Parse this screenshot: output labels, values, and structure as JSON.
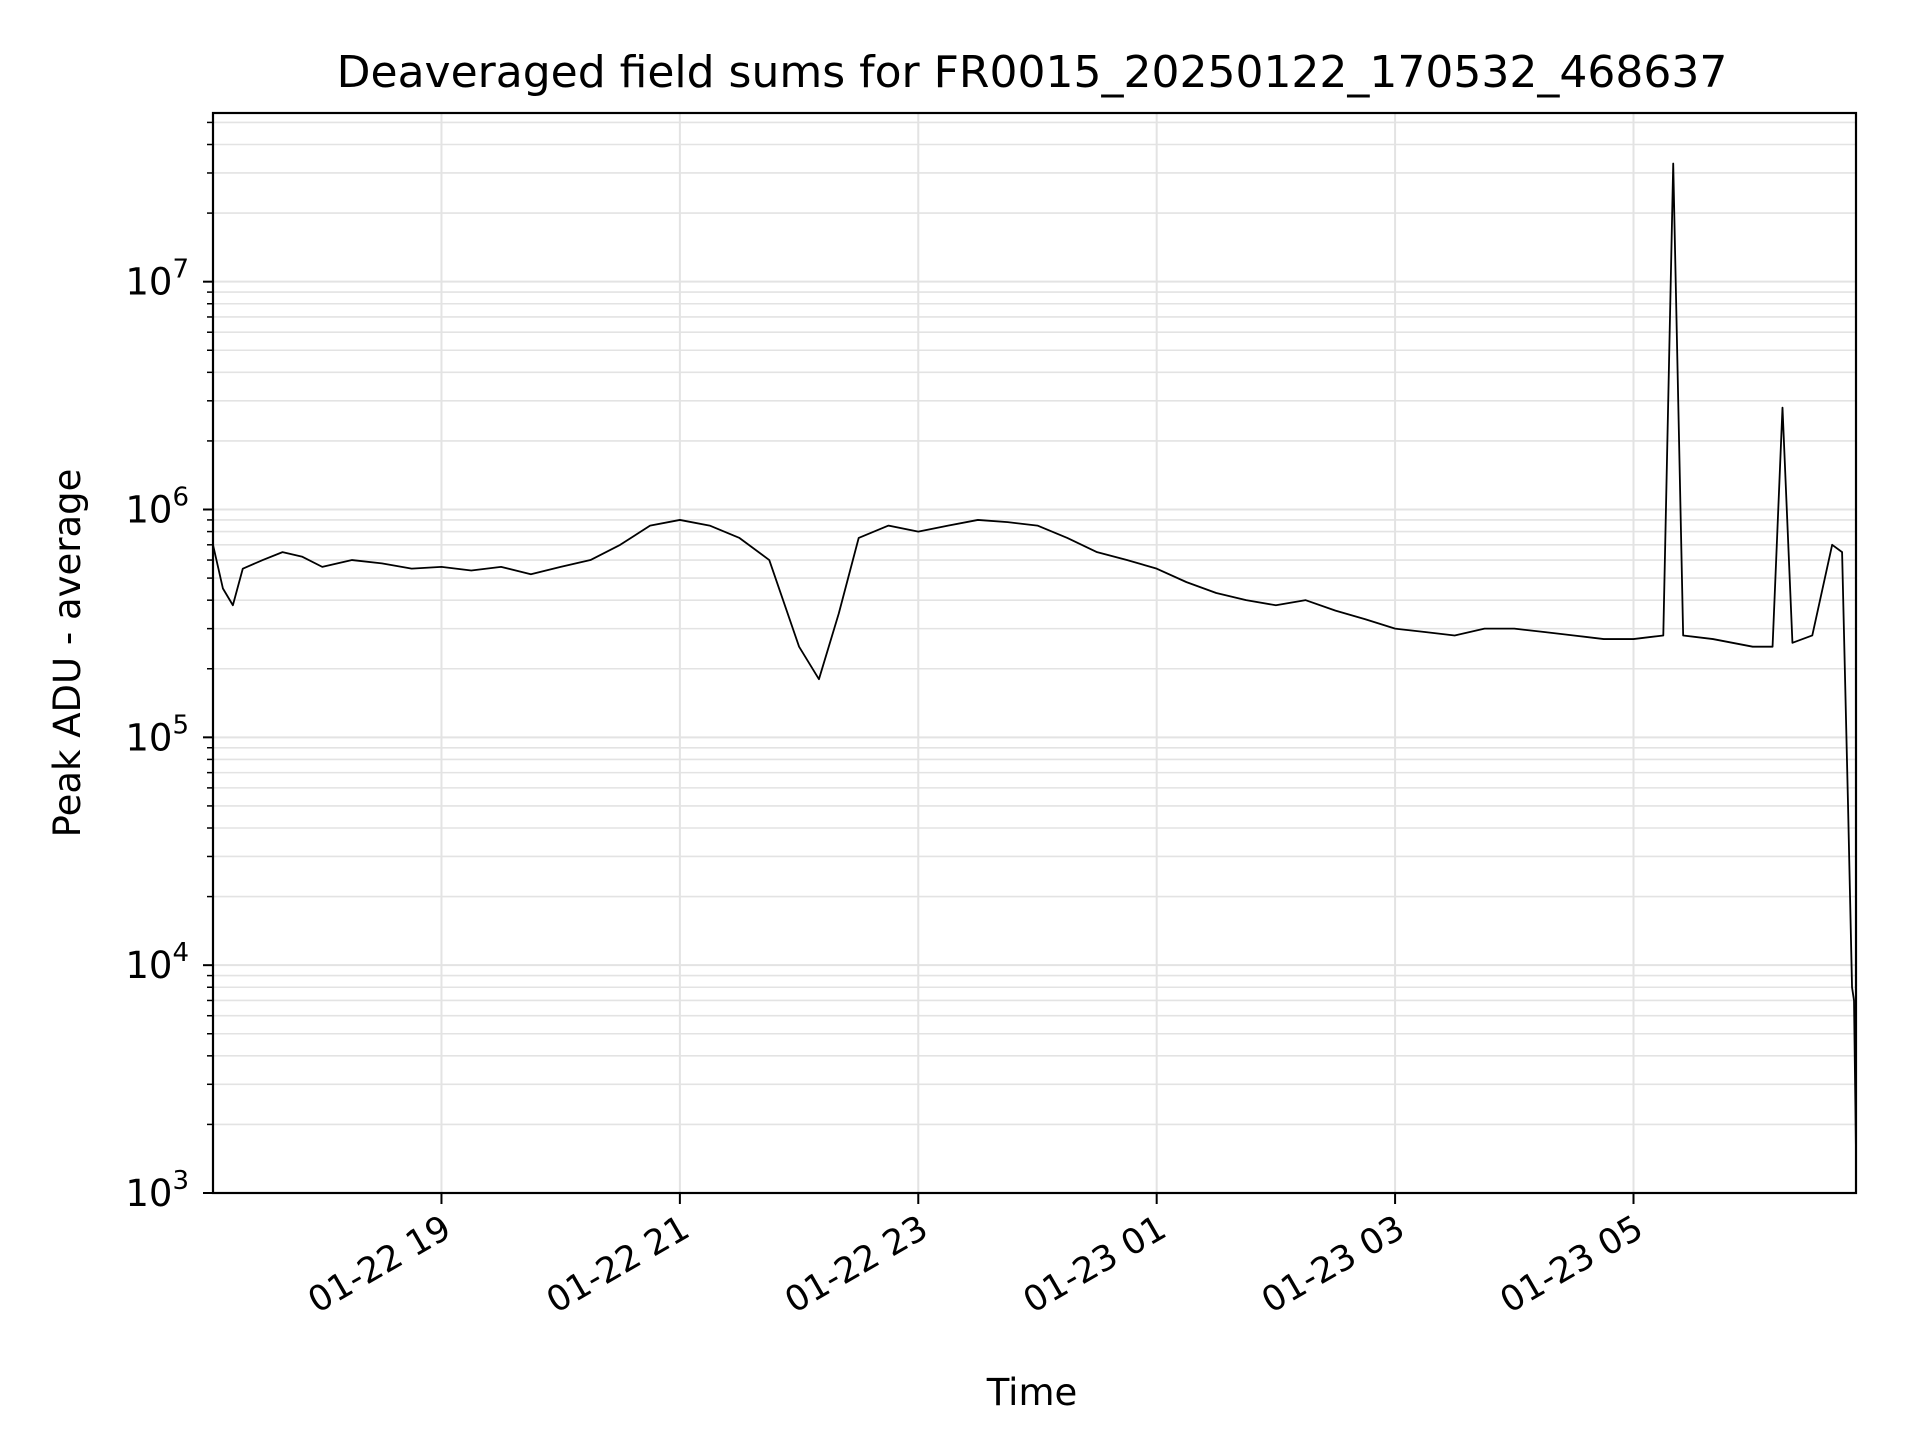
{
  "chart_data": {
    "type": "line",
    "title": "Deaveraged field sums for FR0015_20250122_170532_468637",
    "xlabel": "Time",
    "ylabel": "Peak ADU - average",
    "yscale": "log",
    "ylim": [
      1000,
      55000000
    ],
    "xlim": [
      "2025-01-22 17:05",
      "2025-01-23 06:52"
    ],
    "grid": true,
    "legend": "none",
    "line_color": "#000000",
    "xticks": [
      {
        "t": "2025-01-22 19:00",
        "label": "01-22 19"
      },
      {
        "t": "2025-01-22 21:00",
        "label": "01-22 21"
      },
      {
        "t": "2025-01-22 23:00",
        "label": "01-22 23"
      },
      {
        "t": "2025-01-23 01:00",
        "label": "01-23 01"
      },
      {
        "t": "2025-01-23 03:00",
        "label": "01-23 03"
      },
      {
        "t": "2025-01-23 05:00",
        "label": "01-23 05"
      }
    ],
    "yticks": [
      {
        "value": 1000,
        "base": "10",
        "exp": "3"
      },
      {
        "value": 10000,
        "base": "10",
        "exp": "4"
      },
      {
        "value": 100000,
        "base": "10",
        "exp": "5"
      },
      {
        "value": 1000000,
        "base": "10",
        "exp": "6"
      },
      {
        "value": 10000000,
        "base": "10",
        "exp": "7"
      }
    ],
    "series": [
      {
        "points": [
          [
            "2025-01-22 17:05",
            700000
          ],
          [
            "2025-01-22 17:10",
            450000
          ],
          [
            "2025-01-22 17:15",
            380000
          ],
          [
            "2025-01-22 17:20",
            550000
          ],
          [
            "2025-01-22 17:30",
            600000
          ],
          [
            "2025-01-22 17:40",
            650000
          ],
          [
            "2025-01-22 17:50",
            620000
          ],
          [
            "2025-01-22 18:00",
            560000
          ],
          [
            "2025-01-22 18:15",
            600000
          ],
          [
            "2025-01-22 18:30",
            580000
          ],
          [
            "2025-01-22 18:45",
            550000
          ],
          [
            "2025-01-22 19:00",
            560000
          ],
          [
            "2025-01-22 19:15",
            540000
          ],
          [
            "2025-01-22 19:30",
            560000
          ],
          [
            "2025-01-22 19:45",
            520000
          ],
          [
            "2025-01-22 20:00",
            560000
          ],
          [
            "2025-01-22 20:15",
            600000
          ],
          [
            "2025-01-22 20:30",
            700000
          ],
          [
            "2025-01-22 20:45",
            850000
          ],
          [
            "2025-01-22 21:00",
            900000
          ],
          [
            "2025-01-22 21:15",
            850000
          ],
          [
            "2025-01-22 21:30",
            750000
          ],
          [
            "2025-01-22 21:45",
            600000
          ],
          [
            "2025-01-22 22:00",
            250000
          ],
          [
            "2025-01-22 22:10",
            180000
          ],
          [
            "2025-01-22 22:20",
            350000
          ],
          [
            "2025-01-22 22:30",
            750000
          ],
          [
            "2025-01-22 22:45",
            850000
          ],
          [
            "2025-01-22 23:00",
            800000
          ],
          [
            "2025-01-22 23:15",
            850000
          ],
          [
            "2025-01-22 23:30",
            900000
          ],
          [
            "2025-01-22 23:45",
            880000
          ],
          [
            "2025-01-23 00:00",
            850000
          ],
          [
            "2025-01-23 00:15",
            750000
          ],
          [
            "2025-01-23 00:30",
            650000
          ],
          [
            "2025-01-23 00:45",
            600000
          ],
          [
            "2025-01-23 01:00",
            550000
          ],
          [
            "2025-01-23 01:15",
            480000
          ],
          [
            "2025-01-23 01:30",
            430000
          ],
          [
            "2025-01-23 01:45",
            400000
          ],
          [
            "2025-01-23 02:00",
            380000
          ],
          [
            "2025-01-23 02:15",
            400000
          ],
          [
            "2025-01-23 02:30",
            360000
          ],
          [
            "2025-01-23 02:45",
            330000
          ],
          [
            "2025-01-23 03:00",
            300000
          ],
          [
            "2025-01-23 03:15",
            290000
          ],
          [
            "2025-01-23 03:30",
            280000
          ],
          [
            "2025-01-23 03:45",
            300000
          ],
          [
            "2025-01-23 04:00",
            300000
          ],
          [
            "2025-01-23 04:15",
            290000
          ],
          [
            "2025-01-23 04:30",
            280000
          ],
          [
            "2025-01-23 04:45",
            270000
          ],
          [
            "2025-01-23 05:00",
            270000
          ],
          [
            "2025-01-23 05:15",
            280000
          ],
          [
            "2025-01-23 05:20",
            33000000
          ],
          [
            "2025-01-23 05:25",
            280000
          ],
          [
            "2025-01-23 05:40",
            270000
          ],
          [
            "2025-01-23 06:00",
            250000
          ],
          [
            "2025-01-23 06:10",
            250000
          ],
          [
            "2025-01-23 06:15",
            2800000
          ],
          [
            "2025-01-23 06:20",
            260000
          ],
          [
            "2025-01-23 06:30",
            280000
          ],
          [
            "2025-01-23 06:40",
            700000
          ],
          [
            "2025-01-23 06:45",
            650000
          ],
          [
            "2025-01-23 06:48",
            50000
          ],
          [
            "2025-01-23 06:50",
            8000
          ],
          [
            "2025-01-23 06:51",
            7000
          ],
          [
            "2025-01-23 06:52",
            1500
          ]
        ]
      }
    ]
  }
}
